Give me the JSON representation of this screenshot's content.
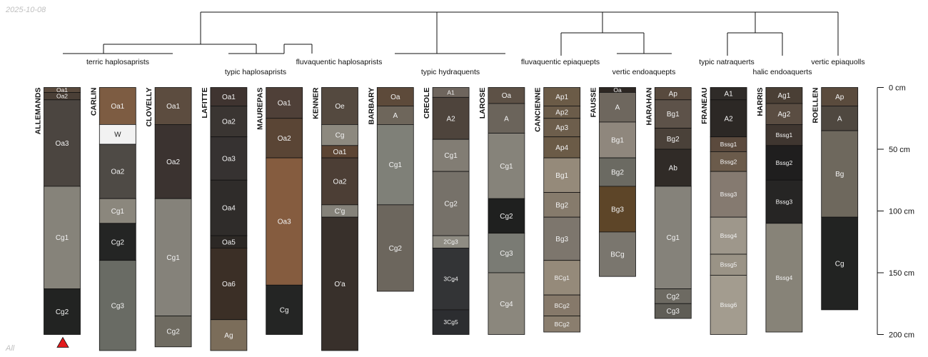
{
  "date": "2025-10-08",
  "corner_label": "All",
  "depth_axis": {
    "unit": "cm",
    "max_depth": 200,
    "ticks": [
      {
        "value": 0,
        "label": "0 cm"
      },
      {
        "value": 50,
        "label": "50 cm"
      },
      {
        "value": 100,
        "label": "100 cm"
      },
      {
        "value": 150,
        "label": "150 cm"
      },
      {
        "value": 200,
        "label": "200 cm"
      }
    ]
  },
  "taxa": [
    {
      "key": "t1",
      "label": "terric haplosaprists"
    },
    {
      "key": "t2",
      "label": "typic haplosaprists"
    },
    {
      "key": "t3",
      "label": "fluvaquentic haplosaprists"
    },
    {
      "key": "t4",
      "label": "typic hydraquents"
    },
    {
      "key": "t5",
      "label": "fluvaquentic epiaquepts"
    },
    {
      "key": "t6",
      "label": "vertic endoaquepts"
    },
    {
      "key": "t7",
      "label": "typic natraquerts"
    },
    {
      "key": "t8",
      "label": "halic endoaquerts"
    },
    {
      "key": "t9",
      "label": "vertic epiaquolls"
    }
  ],
  "profiles": [
    {
      "name": "ALLEMANDS",
      "marker": "red-triangle",
      "horizons": [
        {
          "name": "Oa1",
          "top": 0,
          "bottom": 4,
          "color": "#5a4a3d"
        },
        {
          "name": "Oa2",
          "top": 4,
          "bottom": 10,
          "color": "#4a3f36"
        },
        {
          "name": "Oa3",
          "top": 10,
          "bottom": 80,
          "color": "#4b4540"
        },
        {
          "name": "Cg1",
          "top": 80,
          "bottom": 163,
          "color": "#86837a"
        },
        {
          "name": "Cg2",
          "top": 163,
          "bottom": 200,
          "color": "#222322"
        }
      ]
    },
    {
      "name": "CARLIN",
      "horizons": [
        {
          "name": "Oa1",
          "top": 0,
          "bottom": 30,
          "color": "#7d5c42"
        },
        {
          "name": "W",
          "top": 30,
          "bottom": 46,
          "color": "#f2f2f2"
        },
        {
          "name": "Oa2",
          "top": 46,
          "bottom": 90,
          "color": "#4e4a45"
        },
        {
          "name": "Cg1",
          "top": 90,
          "bottom": 110,
          "color": "#8b877d"
        },
        {
          "name": "Cg2",
          "top": 110,
          "bottom": 140,
          "color": "#242524"
        },
        {
          "name": "Cg3",
          "top": 140,
          "bottom": 213,
          "color": "#696b64"
        }
      ]
    },
    {
      "name": "CLOVELLY",
      "horizons": [
        {
          "name": "Oa1",
          "top": 0,
          "bottom": 30,
          "color": "#5c4c3f"
        },
        {
          "name": "Oa2",
          "top": 30,
          "bottom": 90,
          "color": "#3b3330"
        },
        {
          "name": "Cg1",
          "top": 90,
          "bottom": 185,
          "color": "#85827a"
        },
        {
          "name": "Cg2",
          "top": 185,
          "bottom": 210,
          "color": "#6f6b61"
        }
      ]
    },
    {
      "name": "LAFITTE",
      "horizons": [
        {
          "name": "Oa1",
          "top": 0,
          "bottom": 15,
          "color": "#3f3430"
        },
        {
          "name": "Oa2",
          "top": 15,
          "bottom": 40,
          "color": "#3a3532"
        },
        {
          "name": "Oa3",
          "top": 40,
          "bottom": 75,
          "color": "#363231"
        },
        {
          "name": "Oa4",
          "top": 75,
          "bottom": 120,
          "color": "#2f2c2a"
        },
        {
          "name": "Oa5",
          "top": 120,
          "bottom": 130,
          "color": "#2c2825"
        },
        {
          "name": "Oa6",
          "top": 130,
          "bottom": 188,
          "color": "#3b2f26"
        },
        {
          "name": "Ag",
          "top": 188,
          "bottom": 213,
          "color": "#7b6d5a"
        }
      ]
    },
    {
      "name": "MAUREPAS",
      "horizons": [
        {
          "name": "Oa1",
          "top": 0,
          "bottom": 25,
          "color": "#4f4038"
        },
        {
          "name": "Oa2",
          "top": 25,
          "bottom": 57,
          "color": "#5a4535"
        },
        {
          "name": "Oa3",
          "top": 57,
          "bottom": 160,
          "color": "#855c3f"
        },
        {
          "name": "Cg",
          "top": 160,
          "bottom": 200,
          "color": "#242524"
        }
      ]
    },
    {
      "name": "KENNER",
      "horizons": [
        {
          "name": "Oe",
          "top": 0,
          "bottom": 30,
          "color": "#54493f"
        },
        {
          "name": "Cg",
          "top": 30,
          "bottom": 47,
          "color": "#8d897f"
        },
        {
          "name": "Oa1",
          "top": 47,
          "bottom": 57,
          "color": "#5c4433"
        },
        {
          "name": "Oa2",
          "top": 57,
          "bottom": 95,
          "color": "#4c3e35"
        },
        {
          "name": "C'g",
          "top": 95,
          "bottom": 105,
          "color": "#85827a"
        },
        {
          "name": "O'a",
          "top": 105,
          "bottom": 213,
          "color": "#38302b"
        }
      ]
    },
    {
      "name": "BARBARY",
      "horizons": [
        {
          "name": "Oa",
          "top": 0,
          "bottom": 15,
          "color": "#5d4a3a"
        },
        {
          "name": "A",
          "top": 15,
          "bottom": 30,
          "color": "#6e665b"
        },
        {
          "name": "Cg1",
          "top": 30,
          "bottom": 95,
          "color": "#7f8078"
        },
        {
          "name": "Cg2",
          "top": 95,
          "bottom": 165,
          "color": "#6c665d"
        }
      ]
    },
    {
      "name": "CREOLE",
      "horizons": [
        {
          "name": "A1",
          "top": 0,
          "bottom": 8,
          "color": "#6e655d"
        },
        {
          "name": "A2",
          "top": 8,
          "bottom": 42,
          "color": "#4e443c"
        },
        {
          "name": "Cg1",
          "top": 42,
          "bottom": 68,
          "color": "#827d74"
        },
        {
          "name": "Cg2",
          "top": 68,
          "bottom": 120,
          "color": "#767169"
        },
        {
          "name": "2Cg3",
          "top": 120,
          "bottom": 130,
          "color": "#8f8c83"
        },
        {
          "name": "3Cg4",
          "top": 130,
          "bottom": 180,
          "color": "#333436"
        },
        {
          "name": "3Cg5",
          "top": 180,
          "bottom": 200,
          "color": "#2c2d30"
        }
      ]
    },
    {
      "name": "LAROSE",
      "horizons": [
        {
          "name": "Oa",
          "top": 0,
          "bottom": 13,
          "color": "#5d5146"
        },
        {
          "name": "A",
          "top": 13,
          "bottom": 37,
          "color": "#6b645b"
        },
        {
          "name": "Cg1",
          "top": 37,
          "bottom": 90,
          "color": "#86837a"
        },
        {
          "name": "Cg2",
          "top": 90,
          "bottom": 118,
          "color": "#1f201f"
        },
        {
          "name": "Cg3",
          "top": 118,
          "bottom": 150,
          "color": "#7a7b74"
        },
        {
          "name": "Cg4",
          "top": 150,
          "bottom": 200,
          "color": "#8b877d"
        }
      ]
    },
    {
      "name": "CANCIENNE",
      "horizons": [
        {
          "name": "Ap1",
          "top": 0,
          "bottom": 15,
          "color": "#6b5b47"
        },
        {
          "name": "Ap2",
          "top": 15,
          "bottom": 25,
          "color": "#6b5c4a"
        },
        {
          "name": "Ap3",
          "top": 25,
          "bottom": 40,
          "color": "#6d5e4c"
        },
        {
          "name": "Ap4",
          "top": 40,
          "bottom": 57,
          "color": "#6b5b47"
        },
        {
          "name": "Bg1",
          "top": 57,
          "bottom": 85,
          "color": "#958a7a"
        },
        {
          "name": "Bg2",
          "top": 85,
          "bottom": 105,
          "color": "#867b6c"
        },
        {
          "name": "Bg3",
          "top": 105,
          "bottom": 140,
          "color": "#7d766d"
        },
        {
          "name": "BCg1",
          "top": 140,
          "bottom": 168,
          "color": "#958a7a"
        },
        {
          "name": "BCg2",
          "top": 168,
          "bottom": 185,
          "color": "#86796a"
        },
        {
          "name": "BCg2",
          "top": 185,
          "bottom": 198,
          "color": "#8a7e6e"
        }
      ]
    },
    {
      "name": "FAUSSE",
      "horizons": [
        {
          "name": "Oa",
          "top": 0,
          "bottom": 4,
          "color": "#2d2723"
        },
        {
          "name": "A",
          "top": 4,
          "bottom": 28,
          "color": "#6e675e"
        },
        {
          "name": "Bg1",
          "top": 28,
          "bottom": 57,
          "color": "#8f877d"
        },
        {
          "name": "Bg2",
          "top": 57,
          "bottom": 80,
          "color": "#6b6a62"
        },
        {
          "name": "Bg3",
          "top": 80,
          "bottom": 117,
          "color": "#5d4528"
        },
        {
          "name": "BCg",
          "top": 117,
          "bottom": 153,
          "color": "#7a766e"
        }
      ]
    },
    {
      "name": "HARAHAN",
      "horizons": [
        {
          "name": "Ap",
          "top": 0,
          "bottom": 10,
          "color": "#584a3e"
        },
        {
          "name": "Bg1",
          "top": 10,
          "bottom": 33,
          "color": "#5d5249"
        },
        {
          "name": "Bg2",
          "top": 33,
          "bottom": 50,
          "color": "#4a4139"
        },
        {
          "name": "Ab",
          "top": 50,
          "bottom": 80,
          "color": "#302b27"
        },
        {
          "name": "Cg1",
          "top": 80,
          "bottom": 163,
          "color": "#85827a"
        },
        {
          "name": "Cg2",
          "top": 163,
          "bottom": 175,
          "color": "#6d6a62"
        },
        {
          "name": "Cg3",
          "top": 175,
          "bottom": 187,
          "color": "#5f5d56"
        }
      ]
    },
    {
      "name": "FRANEAU",
      "horizons": [
        {
          "name": "A1",
          "top": 0,
          "bottom": 10,
          "color": "#2f2b28"
        },
        {
          "name": "A2",
          "top": 10,
          "bottom": 40,
          "color": "#2c2825"
        },
        {
          "name": "Bssg1",
          "top": 40,
          "bottom": 52,
          "color": "#5b4a3d"
        },
        {
          "name": "Bssg2",
          "top": 52,
          "bottom": 68,
          "color": "#6b5b4b"
        },
        {
          "name": "Bssg3",
          "top": 68,
          "bottom": 105,
          "color": "#857a70"
        },
        {
          "name": "Bssg4",
          "top": 105,
          "bottom": 135,
          "color": "#9e978b"
        },
        {
          "name": "Bssg5",
          "top": 135,
          "bottom": 152,
          "color": "#9a9386"
        },
        {
          "name": "Bssg6",
          "top": 152,
          "bottom": 200,
          "color": "#a39c8f"
        }
      ]
    },
    {
      "name": "HARRIS",
      "horizons": [
        {
          "name": "Ag1",
          "top": 0,
          "bottom": 13,
          "color": "#4a3f35"
        },
        {
          "name": "Ag2",
          "top": 13,
          "bottom": 30,
          "color": "#5a4d42"
        },
        {
          "name": "Bssg1",
          "top": 30,
          "bottom": 47,
          "color": "#3f3630"
        },
        {
          "name": "Bssg2",
          "top": 47,
          "bottom": 75,
          "color": "#1f1e1e"
        },
        {
          "name": "Bssg3",
          "top": 75,
          "bottom": 110,
          "color": "#262524"
        },
        {
          "name": "Bssg4",
          "top": 110,
          "bottom": 198,
          "color": "#878378"
        }
      ]
    },
    {
      "name": "ROELLEN",
      "horizons": [
        {
          "name": "Ap",
          "top": 0,
          "bottom": 15,
          "color": "#5a4b3d"
        },
        {
          "name": "A",
          "top": 15,
          "bottom": 35,
          "color": "#4f4840"
        },
        {
          "name": "Bg",
          "top": 35,
          "bottom": 105,
          "color": "#6e685d"
        },
        {
          "name": "Cg",
          "top": 105,
          "bottom": 180,
          "color": "#222322"
        }
      ]
    }
  ]
}
